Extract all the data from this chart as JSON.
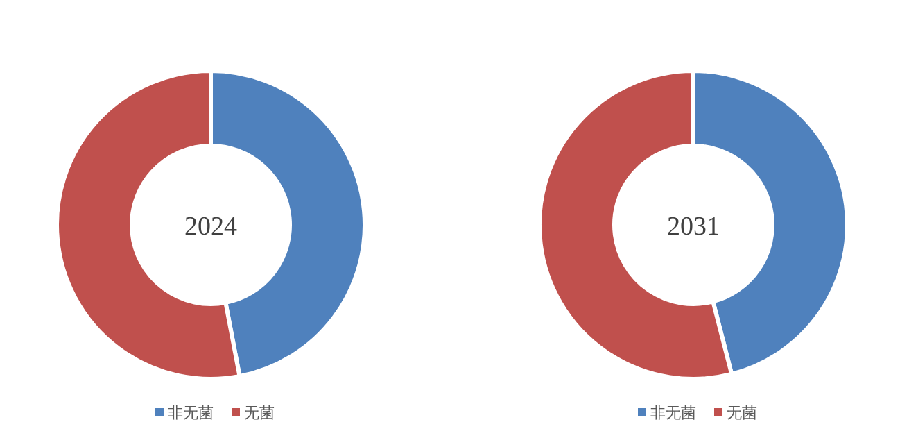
{
  "chart_data": [
    {
      "type": "donut",
      "title": "2024",
      "categories": [
        "非无菌",
        "无菌"
      ],
      "values": [
        47,
        53
      ],
      "colors": [
        "#4f81bd",
        "#c0504d"
      ],
      "legend": "bottom"
    },
    {
      "type": "donut",
      "title": "2031",
      "categories": [
        "非无菌",
        "无菌"
      ],
      "values": [
        46,
        54
      ],
      "colors": [
        "#4f81bd",
        "#c0504d"
      ],
      "legend": "bottom"
    }
  ]
}
